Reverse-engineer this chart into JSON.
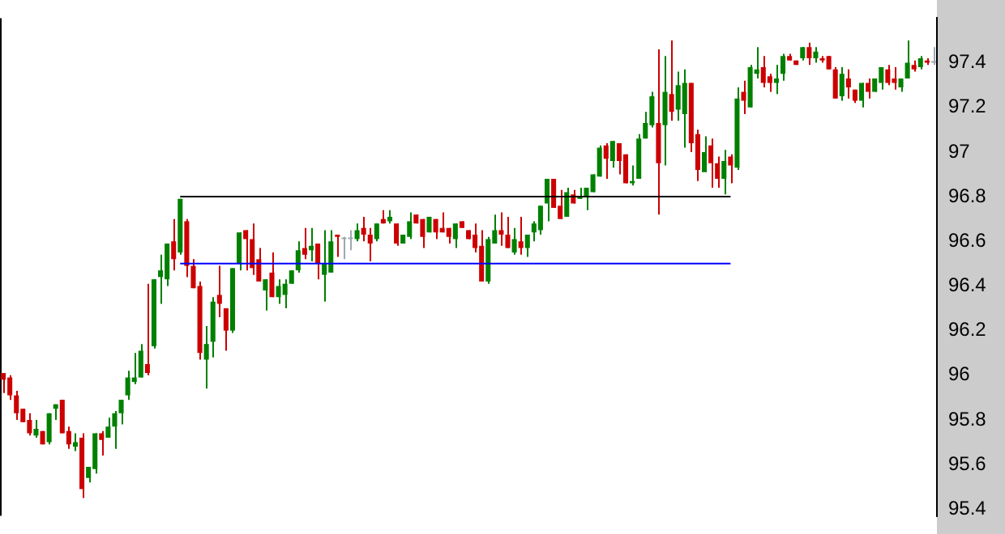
{
  "chart_data": {
    "type": "candlestick",
    "categories": [
      null,
      null,
      null,
      null,
      null,
      null,
      null,
      null,
      null,
      null,
      null,
      null,
      null,
      null,
      null,
      null,
      null,
      null,
      null,
      null,
      null,
      null,
      null,
      null,
      null,
      null,
      null,
      null,
      null,
      null,
      null,
      null,
      null,
      null,
      null,
      null,
      null,
      null,
      null,
      null,
      null,
      null,
      null,
      null,
      null,
      null,
      null,
      null,
      null,
      null,
      null,
      null,
      null,
      null,
      null,
      null,
      null,
      null,
      null,
      null,
      null,
      null,
      null,
      null,
      null,
      null,
      null,
      null,
      null,
      null,
      null,
      null,
      null,
      null,
      null,
      null,
      null,
      null,
      null,
      null,
      null,
      null,
      null,
      null,
      null,
      null,
      null,
      null,
      null,
      null,
      null,
      null,
      null,
      null,
      null,
      null,
      null,
      null,
      null,
      null,
      null,
      null,
      null,
      null,
      null,
      null,
      null,
      null,
      null,
      null,
      null,
      null,
      null,
      null,
      null,
      null,
      null,
      null,
      null,
      null,
      null,
      null,
      null,
      null,
      null,
      null,
      null,
      null,
      null,
      null,
      null,
      null,
      null,
      null,
      null,
      null,
      null,
      null,
      null,
      null,
      null,
      null,
      null
    ],
    "ohlc": [
      [
        96.01,
        96.01,
        95.92,
        95.98
      ],
      [
        95.99,
        96.0,
        95.89,
        95.91
      ],
      [
        95.91,
        95.93,
        95.8,
        95.83
      ],
      [
        95.85,
        95.85,
        95.79,
        95.79
      ],
      [
        95.8,
        95.83,
        95.73,
        95.74
      ],
      [
        95.73,
        95.8,
        95.72,
        95.76
      ],
      [
        95.75,
        95.75,
        95.69,
        95.69
      ],
      [
        95.7,
        95.83,
        95.69,
        95.83
      ],
      [
        95.85,
        95.87,
        95.8,
        95.87
      ],
      [
        95.89,
        95.89,
        95.74,
        95.74
      ],
      [
        95.75,
        95.77,
        95.67,
        95.69
      ],
      [
        95.68,
        95.74,
        95.66,
        95.7
      ],
      [
        95.72,
        95.74,
        95.45,
        95.49
      ],
      [
        95.54,
        95.59,
        95.52,
        95.59
      ],
      [
        95.58,
        95.74,
        95.56,
        95.74
      ],
      [
        95.74,
        95.75,
        95.64,
        95.71
      ],
      [
        95.72,
        95.81,
        95.72,
        95.77
      ],
      [
        95.77,
        95.84,
        95.67,
        95.83
      ],
      [
        95.83,
        95.89,
        95.78,
        95.89
      ],
      [
        95.91,
        96.02,
        95.89,
        95.99
      ],
      [
        95.97,
        96.1,
        95.96,
        95.99
      ],
      [
        95.99,
        96.14,
        95.99,
        96.11
      ],
      [
        96.05,
        96.41,
        96.0,
        96.01
      ],
      [
        96.13,
        96.43,
        96.12,
        96.43
      ],
      [
        96.44,
        96.54,
        96.32,
        96.47
      ],
      [
        96.43,
        96.59,
        96.4,
        96.59
      ],
      [
        96.6,
        96.7,
        96.47,
        96.52
      ],
      [
        96.55,
        96.79,
        96.54,
        96.79
      ],
      [
        96.69,
        96.7,
        96.44,
        96.49
      ],
      [
        96.49,
        96.52,
        96.39,
        96.39
      ],
      [
        96.4,
        96.42,
        96.07,
        96.1
      ],
      [
        96.07,
        96.22,
        95.94,
        96.14
      ],
      [
        96.15,
        96.35,
        96.08,
        96.33
      ],
      [
        96.36,
        96.49,
        96.26,
        96.32
      ],
      [
        96.3,
        96.3,
        96.11,
        96.2
      ],
      [
        96.2,
        96.48,
        96.19,
        96.48
      ],
      [
        96.5,
        96.64,
        96.47,
        96.64
      ],
      [
        96.65,
        96.65,
        96.47,
        96.61
      ],
      [
        96.61,
        96.68,
        96.45,
        96.48
      ],
      [
        96.52,
        96.57,
        96.42,
        96.42
      ],
      [
        96.38,
        96.43,
        96.29,
        96.43
      ],
      [
        96.46,
        96.55,
        96.35,
        96.35
      ],
      [
        96.35,
        96.43,
        96.32,
        96.4
      ],
      [
        96.36,
        96.43,
        96.3,
        96.41
      ],
      [
        96.41,
        96.47,
        96.41,
        96.47
      ],
      [
        96.47,
        96.6,
        96.46,
        96.56
      ],
      [
        96.57,
        96.66,
        96.52,
        96.54
      ],
      [
        96.56,
        96.66,
        96.51,
        96.58
      ],
      [
        96.59,
        96.59,
        96.43,
        96.5
      ],
      [
        96.45,
        96.65,
        96.33,
        96.5
      ],
      [
        96.46,
        96.65,
        96.46,
        96.6
      ],
      [
        96.63,
        96.63,
        96.53,
        96.62
      ],
      [
        96.61,
        96.62,
        96.52,
        96.61
      ],
      [
        96.61,
        96.65,
        96.56,
        96.61
      ],
      [
        96.61,
        96.68,
        96.6,
        96.65
      ],
      [
        96.66,
        96.71,
        96.6,
        96.63
      ],
      [
        96.63,
        96.66,
        96.51,
        96.59
      ],
      [
        96.61,
        96.68,
        96.6,
        96.68
      ],
      [
        96.7,
        96.74,
        96.68,
        96.68
      ],
      [
        96.69,
        96.74,
        96.68,
        96.71
      ],
      [
        96.68,
        96.68,
        96.58,
        96.59
      ],
      [
        96.59,
        96.63,
        96.59,
        96.63
      ],
      [
        96.62,
        96.73,
        96.61,
        96.69
      ],
      [
        96.72,
        96.72,
        96.68,
        96.68
      ],
      [
        96.7,
        96.7,
        96.57,
        96.62
      ],
      [
        96.64,
        96.71,
        96.64,
        96.71
      ],
      [
        96.7,
        96.7,
        96.61,
        96.64
      ],
      [
        96.66,
        96.73,
        96.64,
        96.64
      ],
      [
        96.66,
        96.66,
        96.59,
        96.62
      ],
      [
        96.61,
        96.68,
        96.57,
        96.68
      ],
      [
        96.69,
        96.69,
        96.66,
        96.66
      ],
      [
        96.65,
        96.65,
        96.61,
        96.61
      ],
      [
        96.63,
        96.68,
        96.55,
        96.57
      ],
      [
        96.58,
        96.65,
        96.42,
        96.42
      ],
      [
        96.42,
        96.62,
        96.41,
        96.61
      ],
      [
        96.59,
        96.72,
        96.59,
        96.65
      ],
      [
        96.65,
        96.73,
        96.58,
        96.63
      ],
      [
        96.63,
        96.71,
        96.57,
        96.57
      ],
      [
        96.55,
        96.66,
        96.54,
        96.61
      ],
      [
        96.6,
        96.71,
        96.54,
        96.57
      ],
      [
        96.57,
        96.63,
        96.53,
        96.63
      ],
      [
        96.64,
        96.69,
        96.6,
        96.68
      ],
      [
        96.65,
        96.76,
        96.63,
        96.76
      ],
      [
        96.77,
        96.88,
        96.69,
        96.88
      ],
      [
        96.88,
        96.88,
        96.75,
        96.75
      ],
      [
        96.76,
        96.83,
        96.7,
        96.7
      ],
      [
        96.71,
        96.84,
        96.71,
        96.82
      ],
      [
        96.81,
        96.83,
        96.77,
        96.77
      ],
      [
        96.79,
        96.84,
        96.79,
        96.8
      ],
      [
        96.8,
        96.84,
        96.74,
        96.84
      ],
      [
        96.82,
        96.9,
        96.82,
        96.9
      ],
      [
        96.89,
        97.03,
        96.89,
        97.02
      ],
      [
        97.03,
        97.04,
        96.88,
        96.97
      ],
      [
        96.96,
        97.05,
        96.93,
        97.05
      ],
      [
        97.04,
        97.04,
        96.9,
        96.96
      ],
      [
        96.99,
        96.99,
        96.86,
        96.86
      ],
      [
        96.86,
        96.94,
        96.85,
        96.87
      ],
      [
        96.88,
        97.08,
        96.88,
        97.06
      ],
      [
        97.06,
        97.18,
        97.06,
        97.13
      ],
      [
        97.12,
        97.27,
        97.11,
        97.25
      ],
      [
        97.13,
        97.46,
        96.72,
        96.95
      ],
      [
        97.12,
        97.43,
        96.94,
        97.27
      ],
      [
        97.26,
        97.5,
        97.14,
        97.18
      ],
      [
        97.19,
        97.36,
        97.14,
        97.3
      ],
      [
        97.17,
        97.37,
        97.02,
        97.31
      ],
      [
        97.31,
        97.31,
        97.0,
        97.04
      ],
      [
        97.08,
        97.1,
        96.87,
        96.92
      ],
      [
        96.91,
        97.07,
        96.91,
        97.0
      ],
      [
        97.03,
        97.06,
        96.84,
        96.95
      ],
      [
        96.95,
        96.98,
        96.84,
        96.88
      ],
      [
        96.88,
        97.01,
        96.81,
        96.96
      ],
      [
        96.98,
        96.99,
        96.86,
        96.94
      ],
      [
        96.93,
        97.29,
        96.92,
        97.24
      ],
      [
        97.27,
        97.32,
        97.17,
        97.23
      ],
      [
        97.2,
        97.39,
        97.2,
        97.38
      ],
      [
        97.35,
        97.47,
        97.33,
        97.37
      ],
      [
        97.38,
        97.43,
        97.29,
        97.31
      ],
      [
        97.34,
        97.35,
        97.27,
        97.31
      ],
      [
        97.31,
        97.39,
        97.26,
        97.33
      ],
      [
        97.35,
        97.44,
        97.32,
        97.43
      ],
      [
        97.43,
        97.44,
        97.41,
        97.41
      ],
      [
        97.41,
        97.41,
        97.39,
        97.39
      ],
      [
        97.42,
        97.47,
        97.41,
        97.47
      ],
      [
        97.47,
        97.49,
        97.39,
        97.42
      ],
      [
        97.42,
        97.47,
        97.4,
        97.45
      ],
      [
        97.42,
        97.43,
        97.4,
        97.41
      ],
      [
        97.43,
        97.43,
        97.37,
        97.37
      ],
      [
        97.37,
        97.38,
        97.24,
        97.24
      ],
      [
        97.25,
        97.38,
        97.23,
        97.35
      ],
      [
        97.33,
        97.37,
        97.24,
        97.29
      ],
      [
        97.28,
        97.28,
        97.22,
        97.23
      ],
      [
        97.23,
        97.31,
        97.2,
        97.31
      ],
      [
        97.31,
        97.33,
        97.24,
        97.27
      ],
      [
        97.27,
        97.33,
        97.27,
        97.33
      ],
      [
        97.31,
        97.38,
        97.28,
        97.38
      ],
      [
        97.37,
        97.39,
        97.3,
        97.31
      ],
      [
        97.33,
        97.38,
        97.28,
        97.31
      ],
      [
        97.29,
        97.33,
        97.27,
        97.33
      ],
      [
        97.33,
        97.5,
        97.33,
        97.4
      ],
      [
        97.39,
        97.41,
        97.36,
        97.37
      ],
      [
        97.38,
        97.43,
        97.37,
        97.42
      ],
      [
        97.41,
        97.42,
        97.39,
        97.4
      ],
      [
        97.4,
        97.47,
        97.39,
        97.4
      ]
    ],
    "colors": [
      "#cc0000",
      "#cc0000",
      "#cc0000",
      "#cc0000",
      "#cc0000",
      "#008000",
      "#cc0000",
      "#008000",
      "#008000",
      "#cc0000",
      "#cc0000",
      "#008000",
      "#cc0000",
      "#008000",
      "#008000",
      "#cc0000",
      "#008000",
      "#008000",
      "#008000",
      "#008000",
      "#008000",
      "#008000",
      "#cc0000",
      "#008000",
      "#008000",
      "#008000",
      "#cc0000",
      "#008000",
      "#cc0000",
      "#cc0000",
      "#cc0000",
      "#008000",
      "#008000",
      "#cc0000",
      "#cc0000",
      "#008000",
      "#008000",
      "#cc0000",
      "#cc0000",
      "#cc0000",
      "#008000",
      "#cc0000",
      "#008000",
      "#008000",
      "#008000",
      "#008000",
      "#cc0000",
      "#008000",
      "#cc0000",
      "#008000",
      "#008000",
      "#cc0000",
      "#9ea8b2",
      "#9ea8b2",
      "#008000",
      "#cc0000",
      "#cc0000",
      "#008000",
      "#cc0000",
      "#008000",
      "#cc0000",
      "#008000",
      "#008000",
      "#cc0000",
      "#cc0000",
      "#008000",
      "#cc0000",
      "#cc0000",
      "#cc0000",
      "#008000",
      "#cc0000",
      "#cc0000",
      "#cc0000",
      "#cc0000",
      "#008000",
      "#008000",
      "#cc0000",
      "#cc0000",
      "#008000",
      "#cc0000",
      "#008000",
      "#008000",
      "#008000",
      "#008000",
      "#cc0000",
      "#cc0000",
      "#008000",
      "#cc0000",
      "#008000",
      "#008000",
      "#008000",
      "#008000",
      "#cc0000",
      "#008000",
      "#cc0000",
      "#cc0000",
      "#008000",
      "#008000",
      "#008000",
      "#008000",
      "#cc0000",
      "#008000",
      "#cc0000",
      "#008000",
      "#008000",
      "#cc0000",
      "#cc0000",
      "#008000",
      "#cc0000",
      "#cc0000",
      "#008000",
      "#cc0000",
      "#008000",
      "#cc0000",
      "#008000",
      "#008000",
      "#cc0000",
      "#cc0000",
      "#008000",
      "#008000",
      "#cc0000",
      "#cc0000",
      "#008000",
      "#cc0000",
      "#008000",
      "#cc0000",
      "#cc0000",
      "#cc0000",
      "#008000",
      "#cc0000",
      "#cc0000",
      "#008000",
      "#cc0000",
      "#008000",
      "#008000",
      "#cc0000",
      "#cc0000",
      "#008000",
      "#008000",
      "#cc0000",
      "#008000",
      "#cc0000",
      "#9ea8b2"
    ],
    "series": [
      {
        "type": "line",
        "color": "#000000",
        "values": [
          null,
          null,
          null,
          null,
          null,
          null,
          null,
          null,
          null,
          null,
          null,
          null,
          null,
          null,
          null,
          null,
          null,
          null,
          null,
          null,
          null,
          null,
          null,
          null,
          null,
          null,
          null,
          96.8,
          96.8,
          96.8,
          96.8,
          96.8,
          96.8,
          96.8,
          96.8,
          96.8,
          96.8,
          96.8,
          96.8,
          96.8,
          96.8,
          96.8,
          96.8,
          96.8,
          96.8,
          96.8,
          96.8,
          96.8,
          96.8,
          96.8,
          96.8,
          96.8,
          96.8,
          96.8,
          96.8,
          96.8,
          96.8,
          96.8,
          96.8,
          96.8,
          96.8,
          96.8,
          96.8,
          96.8,
          96.8,
          96.8,
          96.8,
          96.8,
          96.8,
          96.8,
          96.8,
          96.8,
          96.8,
          96.8,
          96.8,
          96.8,
          96.8,
          96.8,
          96.8,
          96.8,
          96.8,
          96.8,
          96.8,
          96.8,
          96.8,
          96.8,
          96.8,
          96.8,
          96.8,
          96.8,
          96.8,
          96.8,
          96.8,
          96.8,
          96.8,
          96.8,
          96.8,
          96.8,
          96.8,
          96.8,
          96.8,
          96.8,
          96.8,
          96.8,
          96.8,
          96.8,
          96.8,
          96.8,
          96.8,
          96.8,
          96.8,
          96.8,
          null,
          null,
          null,
          null,
          null,
          null,
          null,
          null,
          null,
          null,
          null,
          null,
          null,
          null,
          null,
          null,
          null,
          null,
          null,
          null,
          null,
          null,
          null,
          null,
          null,
          null,
          null,
          null,
          null,
          null,
          null
        ]
      },
      {
        "type": "line",
        "color": "#0000ff",
        "values": [
          null,
          null,
          null,
          null,
          null,
          null,
          null,
          null,
          null,
          null,
          null,
          null,
          null,
          null,
          null,
          null,
          null,
          null,
          null,
          null,
          null,
          null,
          null,
          null,
          null,
          null,
          null,
          96.5,
          96.5,
          96.5,
          96.5,
          96.5,
          96.5,
          96.5,
          96.5,
          96.5,
          96.5,
          96.5,
          96.5,
          96.5,
          96.5,
          96.5,
          96.5,
          96.5,
          96.5,
          96.5,
          96.5,
          96.5,
          96.5,
          96.5,
          96.5,
          96.5,
          96.5,
          96.5,
          96.5,
          96.5,
          96.5,
          96.5,
          96.5,
          96.5,
          96.5,
          96.5,
          96.5,
          96.5,
          96.5,
          96.5,
          96.5,
          96.5,
          96.5,
          96.5,
          96.5,
          96.5,
          96.5,
          96.5,
          96.5,
          96.5,
          96.5,
          96.5,
          96.5,
          96.5,
          96.5,
          96.5,
          96.5,
          96.5,
          96.5,
          96.5,
          96.5,
          96.5,
          96.5,
          96.5,
          96.5,
          96.5,
          96.5,
          96.5,
          96.5,
          96.5,
          96.5,
          96.5,
          96.5,
          96.5,
          96.5,
          96.5,
          96.5,
          96.5,
          96.5,
          96.5,
          96.5,
          96.5,
          96.5,
          96.5,
          96.5,
          96.5,
          null,
          null,
          null,
          null,
          null,
          null,
          null,
          null,
          null,
          null,
          null,
          null,
          null,
          null,
          null,
          null,
          null,
          null,
          null,
          null,
          null,
          null,
          null,
          null,
          null,
          null,
          null,
          null,
          null,
          null,
          null
        ]
      }
    ],
    "ylim": [
      95.37,
      97.6
    ],
    "yticks": [
      95.4,
      95.6,
      95.8,
      96,
      96.2,
      96.4,
      96.6,
      96.8,
      97,
      97.2,
      97.4
    ],
    "grid": false,
    "legend": false
  }
}
